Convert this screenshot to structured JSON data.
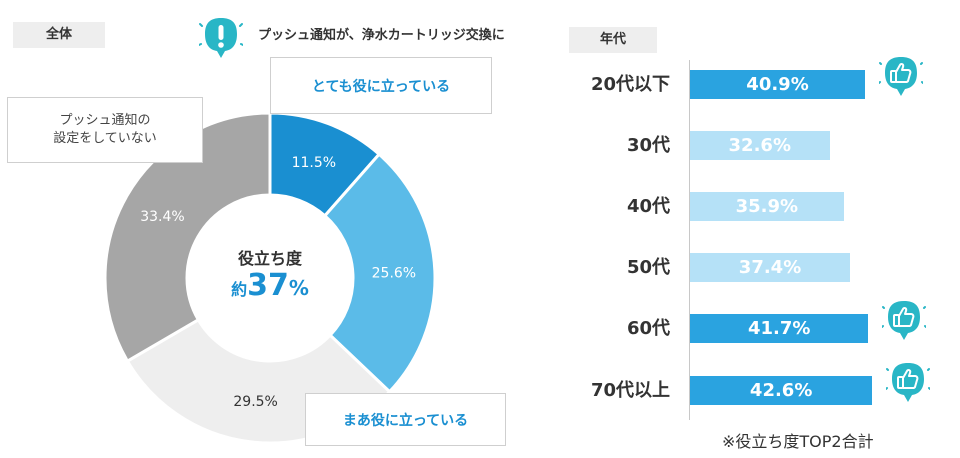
{
  "tags": {
    "all": "全体",
    "age": "年代"
  },
  "alert": {
    "title": "プッシュ通知が、浄水カートリッジ交換に"
  },
  "callouts": {
    "very": "とても役に立っている",
    "somewhat": "まあ役に立っている",
    "off": "プッシュ通知の\n設定をしていない"
  },
  "center": {
    "label": "役立ち度",
    "prefix": "約",
    "number": "37",
    "unit": "%"
  },
  "footnote": "※役立ち度TOP2合計",
  "colors": {
    "very": "#1a8fd1",
    "somewhat": "#5bbbe8",
    "neutral": "#eeeeee",
    "off": "#a6a6a6",
    "bar_top2": "#2aa3e0",
    "bar_normal": "#b5e1f7",
    "thumb_badge": "#29b6c6"
  },
  "chart_data": [
    {
      "type": "pie",
      "title": "全体",
      "slices": [
        {
          "label": "とても役に立っている",
          "value": 11.5,
          "display": "11.5%",
          "color": "#1a8fd1",
          "text_color": "#ffffff"
        },
        {
          "label": "まあ役に立っている",
          "value": 25.6,
          "display": "25.6%",
          "color": "#5bbbe8",
          "text_color": "#ffffff"
        },
        {
          "label": "",
          "value": 29.5,
          "display": "29.5%",
          "color": "#eeeeee",
          "text_color": "#333333"
        },
        {
          "label": "プッシュ通知の設定をしていない",
          "value": 33.4,
          "display": "33.4%",
          "color": "#a6a6a6",
          "text_color": "#ffffff"
        }
      ]
    },
    {
      "type": "bar",
      "title": "年代",
      "orientation": "horizontal",
      "categories": [
        "20代以下",
        "30代",
        "40代",
        "50代",
        "60代",
        "70代以上"
      ],
      "values": [
        40.9,
        32.6,
        35.9,
        37.4,
        41.7,
        42.6
      ],
      "value_labels": [
        "40.9%",
        "32.6%",
        "35.9%",
        "37.4%",
        "41.7%",
        "42.6%"
      ],
      "highlighted": [
        true,
        false,
        false,
        false,
        true,
        true
      ],
      "xlim": [
        0,
        60
      ]
    }
  ]
}
